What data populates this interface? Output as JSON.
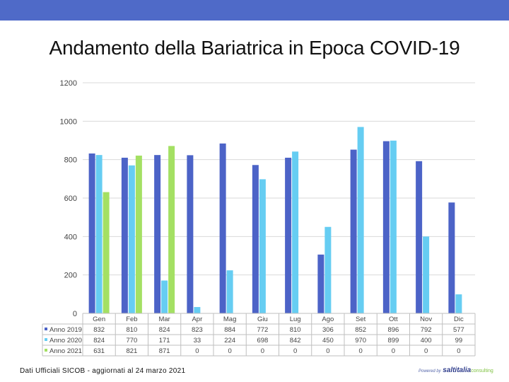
{
  "title": "Andamento della Bariatrica in Epoca COVID-19",
  "footer": "Dati Ufficiali SICOB - aggiornati al 24 marzo 2021",
  "logo": {
    "powered": "Powered by",
    "brand": "saltitalia",
    "domain": "consulting"
  },
  "colors": {
    "header": "#4f6ac8",
    "Anno 2019": "#4c63c7",
    "Anno 2020": "#66cdf2",
    "Anno 2021": "#a4e063"
  },
  "chart_data": {
    "type": "bar",
    "categories": [
      "Gen",
      "Feb",
      "Mar",
      "Apr",
      "Mag",
      "Giu",
      "Lug",
      "Ago",
      "Set",
      "Ott",
      "Nov",
      "Dic"
    ],
    "series": [
      {
        "name": "Anno 2019",
        "values": [
          832,
          810,
          824,
          823,
          884,
          772,
          810,
          306,
          852,
          896,
          792,
          577
        ]
      },
      {
        "name": "Anno 2020",
        "values": [
          824,
          770,
          171,
          33,
          224,
          698,
          842,
          450,
          970,
          899,
          400,
          99
        ]
      },
      {
        "name": "Anno 2021",
        "values": [
          631,
          821,
          871,
          0,
          0,
          0,
          0,
          0,
          0,
          0,
          0,
          0
        ]
      }
    ],
    "ylim": [
      0,
      1200
    ],
    "yticks": [
      0,
      200,
      400,
      600,
      800,
      1000,
      1200
    ],
    "grid": true,
    "legend": "data-table-below",
    "xlabel": "",
    "ylabel": ""
  }
}
